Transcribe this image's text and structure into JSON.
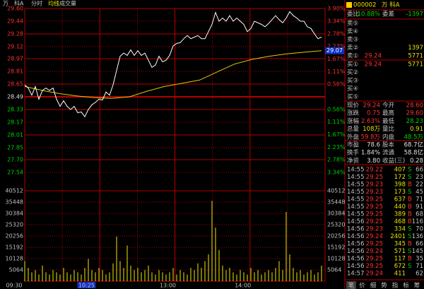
{
  "chart_data": [
    {
      "type": "line",
      "header": [
        "万",
        "科A",
        "分时",
        "均线",
        "成交量"
      ],
      "series": [
        {
          "color": "#ffffff",
          "values": [
            28.64,
            28.6,
            28.51,
            28.62,
            28.46,
            28.57,
            28.6,
            28.57,
            28.6,
            28.46,
            28.37,
            28.44,
            28.37,
            28.33,
            28.37,
            28.29,
            28.3,
            28.24,
            28.33,
            28.39,
            28.42,
            28.46,
            28.45,
            28.55,
            28.51,
            28.64,
            28.82,
            29.0,
            29.04,
            29.01,
            29.08,
            29.01,
            29.07,
            29.01,
            29.04,
            28.95,
            28.86,
            28.89,
            29.0,
            28.93,
            28.95,
            29.01,
            29.13,
            29.16,
            29.17,
            29.22,
            29.26,
            29.22,
            29.24,
            29.26,
            29.22,
            29.22,
            29.31,
            29.4,
            29.55,
            29.44,
            29.48,
            29.44,
            29.51,
            29.44,
            29.48,
            29.44,
            29.4,
            29.31,
            29.35,
            29.44,
            29.42,
            29.4,
            29.37,
            29.41,
            29.46,
            29.51,
            29.46,
            29.42,
            29.48,
            29.56,
            29.51,
            29.48,
            29.44,
            29.44,
            29.37,
            29.35,
            29.28,
            29.22,
            29.24
          ]
        },
        {
          "name": "均线",
          "color": "#e8c800",
          "values": [
            28.62,
            28.57,
            28.53,
            28.5,
            28.48,
            28.47,
            28.49,
            28.56,
            28.62,
            28.66,
            28.7,
            28.8,
            28.9,
            28.96,
            29.0,
            29.03,
            29.05,
            29.07
          ]
        }
      ],
      "ylim": [
        27.38,
        29.6
      ],
      "yticks": [
        {
          "value": 29.6,
          "label": "29.60"
        },
        29.44,
        29.28,
        29.12,
        28.97,
        28.81,
        28.65,
        28.49,
        28.33,
        28.17,
        28.01,
        27.85,
        {
          "value": 27.7,
          "label": "27.70"
        },
        27.54
      ],
      "y2lim": [
        -3.9,
        3.9
      ],
      "y2ticks": [
        {
          "value": 3.9,
          "label": "3.90%"
        },
        {
          "value": 3.34,
          "label": "3.34%"
        },
        {
          "value": 2.78,
          "label": "2.78%"
        },
        {
          "value": 2.23,
          "label": "2.23%"
        },
        {
          "value": 1.67,
          "label": "1.67%"
        },
        {
          "value": 1.11,
          "label": "1.11%"
        },
        {
          "value": 0.56,
          "label": "0.56%"
        },
        {
          "value": -0.56,
          "label": "0.56%"
        },
        {
          "value": -1.11,
          "label": "1.11%"
        },
        {
          "value": -1.67,
          "label": "1.67%"
        },
        {
          "value": -2.23,
          "label": "2.23%"
        },
        {
          "value": -2.78,
          "label": "2.78%"
        },
        {
          "value": -3.34,
          "label": "3.34%"
        }
      ],
      "price_marker": 29.07,
      "time_labels": [
        "09:30",
        "10:25",
        "13:00",
        "14:00"
      ],
      "grid": true
    },
    {
      "type": "bar",
      "color": "#c8c000",
      "values": [
        9000,
        6000,
        4000,
        5000,
        3000,
        7000,
        4000,
        3000,
        5000,
        4000,
        3000,
        6000,
        4000,
        3000,
        5000,
        4000,
        3000,
        6000,
        10000,
        5000,
        4000,
        6000,
        5000,
        3000,
        4000,
        8000,
        20000,
        9000,
        6000,
        16000,
        7000,
        5000,
        6000,
        4000,
        5000,
        7000,
        4000,
        3000,
        5000,
        4000,
        3000,
        4000,
        6000,
        3000,
        5000,
        4000,
        3000,
        6000,
        5000,
        8000,
        6000,
        9000,
        12000,
        36000,
        24000,
        14000,
        7000,
        5000,
        6000,
        4000,
        3000,
        5000,
        4000,
        3000,
        6000,
        4000,
        5000,
        3000,
        4000,
        5000,
        4000,
        6000,
        9000,
        5000,
        31000,
        12000,
        6000,
        4000,
        5000,
        3000,
        4000,
        5000,
        3000,
        4000,
        7000
      ],
      "ylim": [
        0,
        40512
      ],
      "yticks": [
        40512,
        35448,
        30384,
        25320,
        20256,
        15192,
        10128,
        5064
      ],
      "grid": true
    }
  ],
  "panel": {
    "code": "000002",
    "name": "万  科A",
    "ratio": [
      "委比",
      "-10.88%",
      "委差",
      "-1397"
    ],
    "asks": [
      {
        "label": "卖⑤"
      },
      {
        "label": "卖④"
      },
      {
        "label": "卖③"
      },
      {
        "label": "卖②",
        "volume": "1397"
      },
      {
        "label": "卖①",
        "price": "29.24",
        "volume": "5771"
      }
    ],
    "bids": [
      {
        "label": "买①",
        "price": "29.24",
        "volume": "5771"
      },
      {
        "label": "买②"
      },
      {
        "label": "买③"
      },
      {
        "label": "买④"
      },
      {
        "label": "买⑤"
      }
    ],
    "stats": [
      [
        "现价",
        "29.24",
        "今开",
        "28.60"
      ],
      [
        "涨跌",
        "0.75",
        "最高",
        "29.60"
      ],
      [
        "涨幅",
        "2.63%",
        "最低",
        "28.23"
      ],
      [
        "总量",
        "108万",
        "量比",
        "0.91"
      ],
      [
        "外盘",
        "59.8万",
        "内盘",
        "48.5万"
      ],
      [
        "市盈",
        "78.6",
        "股本",
        "68.7亿"
      ],
      [
        "换手",
        "1.84%",
        "流通",
        "58.8亿"
      ],
      [
        "净资",
        "3.80",
        "收益(三)",
        "0.28"
      ]
    ],
    "trades": [
      {
        "time": "14:55",
        "price": "29.22",
        "volume": "407",
        "side": "S",
        "count": "66"
      },
      {
        "time": "14:55",
        "price": "29.25",
        "volume": "172",
        "side": "S",
        "count": "23"
      },
      {
        "time": "14:55",
        "price": "29.23",
        "volume": "398",
        "side": "B",
        "count": "22"
      },
      {
        "time": "14:55",
        "price": "29.23",
        "volume": "173",
        "side": "S",
        "count": "45"
      },
      {
        "time": "14:55",
        "price": "29.25",
        "volume": "637",
        "side": "B",
        "count": "71"
      },
      {
        "time": "14:55",
        "price": "29.25",
        "volume": "440",
        "side": "B",
        "count": "91"
      },
      {
        "time": "14:55",
        "price": "29.25",
        "volume": "389",
        "side": "B",
        "count": "68"
      },
      {
        "time": "14:56",
        "price": "29.25",
        "volume": "468",
        "side": "B",
        "count": "116"
      },
      {
        "time": "14:56",
        "price": "29.23",
        "volume": "334",
        "side": "S",
        "count": "70"
      },
      {
        "time": "14:56",
        "price": "29.24",
        "volume": "2401",
        "side": "S",
        "count": "136"
      },
      {
        "time": "14:56",
        "price": "29.25",
        "volume": "345",
        "side": "B",
        "count": "66"
      },
      {
        "time": "14:56",
        "price": "29.24",
        "volume": "571",
        "side": "S",
        "count": "145"
      },
      {
        "time": "14:56",
        "price": "29.25",
        "volume": "117",
        "side": "B",
        "count": "35"
      },
      {
        "time": "14:56",
        "price": "29.25",
        "volume": "672",
        "side": "S",
        "count": "71"
      },
      {
        "time": "14:57",
        "price": "29.24",
        "volume": "411",
        "count": "62"
      }
    ],
    "tabs": [
      "笔",
      "价",
      "细",
      "势",
      "指",
      "标",
      "筹"
    ]
  }
}
